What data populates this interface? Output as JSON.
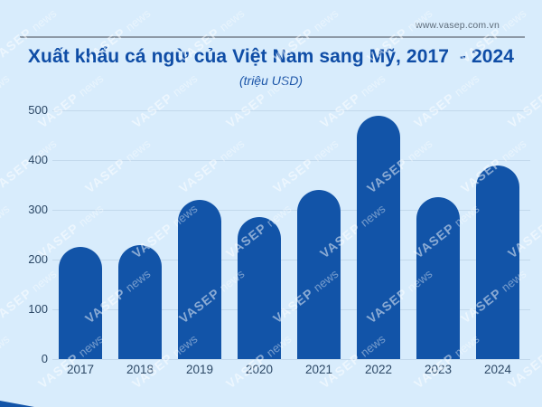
{
  "page": {
    "website": "www.vasep.com.vn"
  },
  "header": {
    "title": "Xuất khẩu cá ngừ của Việt Nam sang Mỹ, 2017  - 2024",
    "subtitle": "(triệu USD)"
  },
  "watermark": {
    "brand": "VASEP",
    "suffix": "news"
  },
  "colors": {
    "background": "#d8ecfc",
    "bar": "#1254a8",
    "title": "#0f4da6",
    "axis_text": "#2c4866",
    "gridline": "#c3d9ec",
    "rule_line": "#8d99a6",
    "url_text": "#5d6b79"
  },
  "chart_data": {
    "type": "bar",
    "title": "Xuất khẩu cá ngừ của Việt Nam sang Mỹ, 2017 - 2024",
    "subtitle": "(triệu USD)",
    "ylabel": "triệu USD",
    "xlabel": "",
    "categories": [
      "2017",
      "2018",
      "2019",
      "2020",
      "2021",
      "2022",
      "2023",
      "2024"
    ],
    "values": [
      225,
      230,
      320,
      285,
      340,
      490,
      325,
      390
    ],
    "ylim": [
      0,
      500
    ],
    "yticks": [
      0,
      100,
      200,
      300,
      400,
      500
    ],
    "grid": true,
    "legend": "none",
    "bar_color": "#1254a8",
    "bar_cap": "rounded-top"
  }
}
